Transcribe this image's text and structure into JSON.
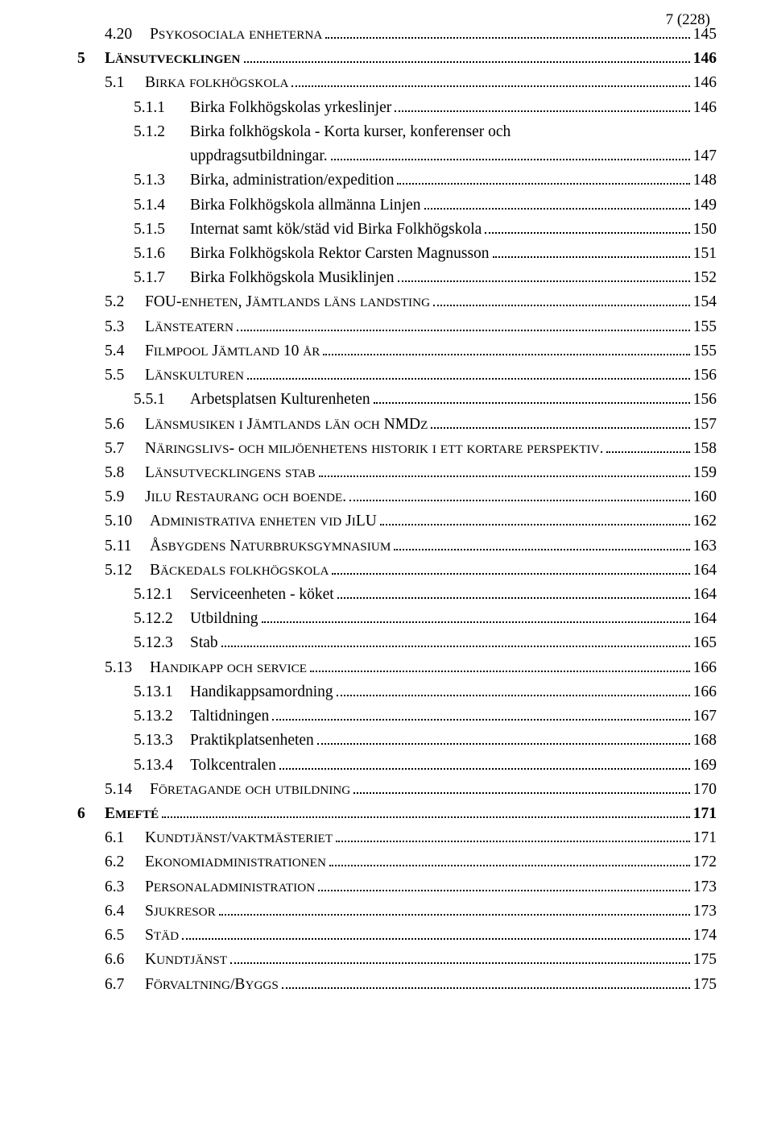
{
  "page_header": "7 (228)",
  "font": {
    "family": "Times New Roman",
    "body_size_pt": 14,
    "heading_weight": "bold",
    "color": "#000000",
    "background": "#ffffff",
    "dot_leader_color": "#000000"
  },
  "toc": [
    {
      "level": 2,
      "num": "4.20",
      "label": "Psykosociala enheterna",
      "page": "145",
      "smallcaps": true
    },
    {
      "level": 1,
      "num": "5",
      "label": "Länsutvecklingen",
      "page": "146",
      "bold": true,
      "smallcaps": true
    },
    {
      "level": 2,
      "num": "5.1",
      "label": "Birka folkhögskola",
      "page": "146",
      "smallcaps": true
    },
    {
      "level": 3,
      "num": "5.1.1",
      "label": "Birka Folkhögskolas yrkeslinjer",
      "page": "146"
    },
    {
      "level": 3,
      "num": "5.1.2",
      "label": "Birka folkhögskola - Korta kurser, konferenser och uppdragsutbildningar.",
      "page": "147"
    },
    {
      "level": 3,
      "num": "5.1.3",
      "label": "Birka, administration/expedition",
      "page": "148"
    },
    {
      "level": 3,
      "num": "5.1.4",
      "label": "Birka Folkhögskola allmänna Linjen",
      "page": "149"
    },
    {
      "level": 3,
      "num": "5.1.5",
      "label": "Internat samt kök/städ vid Birka Folkhögskola",
      "page": "150"
    },
    {
      "level": 3,
      "num": "5.1.6",
      "label": "Birka Folkhögskola Rektor Carsten Magnusson",
      "page": "151"
    },
    {
      "level": 3,
      "num": "5.1.7",
      "label": "Birka Folkhögskola  Musiklinjen",
      "page": "152"
    },
    {
      "level": 2,
      "num": "5.2",
      "label": "FOU-enheten, Jämtlands läns landsting",
      "page": "154",
      "smallcaps": true
    },
    {
      "level": 2,
      "num": "5.3",
      "label": "Länsteatern",
      "page": "155",
      "smallcaps": true
    },
    {
      "level": 2,
      "num": "5.4",
      "label": "Filmpool Jämtland 10 år",
      "page": "155",
      "smallcaps": true
    },
    {
      "level": 2,
      "num": "5.5",
      "label": "Länskulturen",
      "page": "156",
      "smallcaps": true
    },
    {
      "level": 3,
      "num": "5.5.1",
      "label": "Arbetsplatsen Kulturenheten",
      "page": "156"
    },
    {
      "level": 2,
      "num": "5.6",
      "label": "Länsmusiken i Jämtlands län och NMDz",
      "page": "157",
      "smallcaps": true
    },
    {
      "level": 2,
      "num": "5.7",
      "label": "Näringslivs- och miljöenhetens historik i ett kortare perspektiv.",
      "page": "158",
      "smallcaps": true
    },
    {
      "level": 2,
      "num": "5.8",
      "label": "Länsutvecklingens stab",
      "page": "159",
      "smallcaps": true
    },
    {
      "level": 2,
      "num": "5.9",
      "label": "Jilu Restaurang och boende.",
      "page": "160",
      "smallcaps": true
    },
    {
      "level": 2,
      "num": "5.10",
      "label": "Administrativa enheten vid JiLU",
      "page": "162",
      "smallcaps": true
    },
    {
      "level": 2,
      "num": "5.11",
      "label": "Åsbygdens Naturbruksgymnasium",
      "page": "163",
      "smallcaps": true
    },
    {
      "level": 2,
      "num": "5.12",
      "label": "Bäckedals folkhögskola",
      "page": "164",
      "smallcaps": true
    },
    {
      "level": 3,
      "num": "5.12.1",
      "label": "Serviceenheten - köket",
      "page": "164"
    },
    {
      "level": 3,
      "num": "5.12.2",
      "label": "Utbildning",
      "page": "164"
    },
    {
      "level": 3,
      "num": "5.12.3",
      "label": "Stab",
      "page": "165"
    },
    {
      "level": 2,
      "num": "5.13",
      "label": "Handikapp och service",
      "page": "166",
      "smallcaps": true
    },
    {
      "level": 3,
      "num": "5.13.1",
      "label": "Handikappsamordning",
      "page": "166"
    },
    {
      "level": 3,
      "num": "5.13.2",
      "label": "Taltidningen",
      "page": "167"
    },
    {
      "level": 3,
      "num": "5.13.3",
      "label": "Praktikplatsenheten",
      "page": "168"
    },
    {
      "level": 3,
      "num": "5.13.4",
      "label": "Tolkcentralen",
      "page": "169"
    },
    {
      "level": 2,
      "num": "5.14",
      "label": "Företagande och utbildning",
      "page": "170",
      "smallcaps": true
    },
    {
      "level": 1,
      "num": "6",
      "label": "Emefté",
      "page": "171",
      "bold": true,
      "smallcaps": true
    },
    {
      "level": 2,
      "num": "6.1",
      "label": "Kundtjänst/vaktmästeriet",
      "page": "171",
      "smallcaps": true
    },
    {
      "level": 2,
      "num": "6.2",
      "label": "Ekonomiadministrationen",
      "page": "172",
      "smallcaps": true
    },
    {
      "level": 2,
      "num": "6.3",
      "label": "Personaladministration",
      "page": "173",
      "smallcaps": true
    },
    {
      "level": 2,
      "num": "6.4",
      "label": "Sjukresor",
      "page": "173",
      "smallcaps": true
    },
    {
      "level": 2,
      "num": "6.5",
      "label": "Städ",
      "page": "174",
      "smallcaps": true
    },
    {
      "level": 2,
      "num": "6.6",
      "label": "Kundtjänst",
      "page": "175",
      "smallcaps": true
    },
    {
      "level": 2,
      "num": "6.7",
      "label": "Förvaltning/Byggs",
      "page": "175",
      "smallcaps": true
    }
  ]
}
